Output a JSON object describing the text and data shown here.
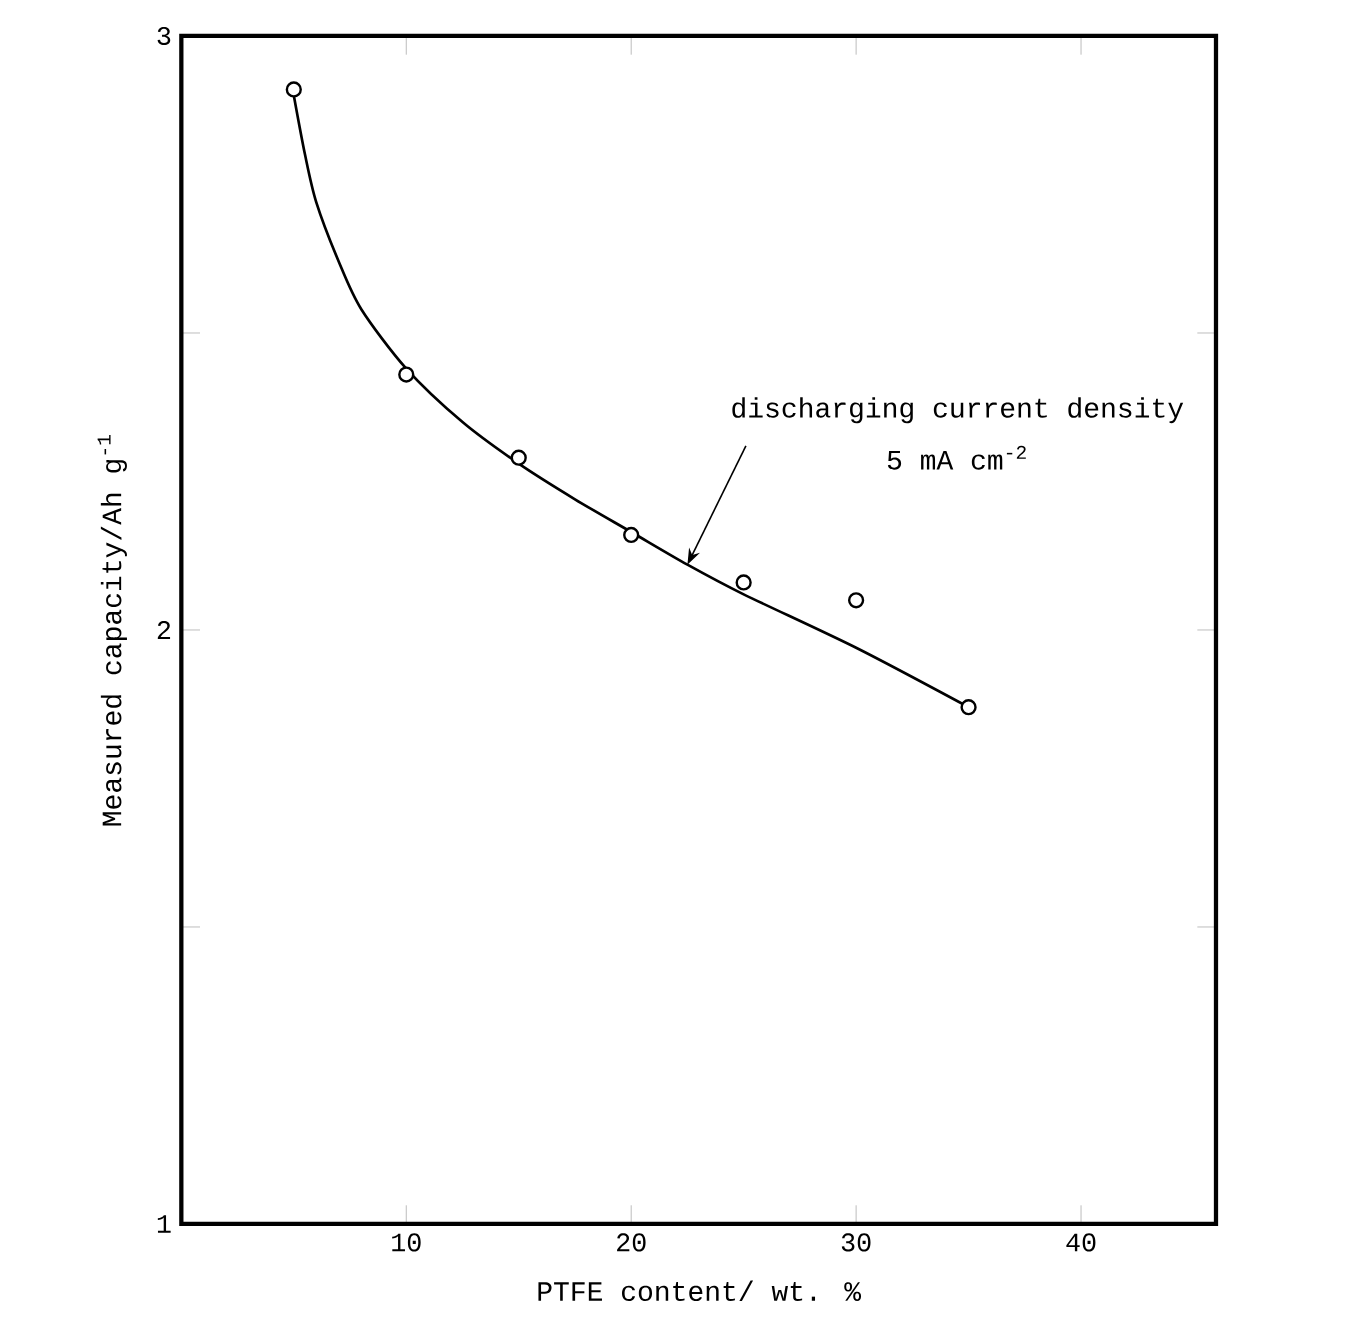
{
  "chart_data": {
    "type": "scatter",
    "xlabel": "PTFE content/ wt. %",
    "ylabel": "Measured capacity/Ah g$^{-1}$",
    "xlim": [
      0,
      46
    ],
    "ylim": [
      1,
      3
    ],
    "xticks": [
      10,
      20,
      30,
      40
    ],
    "yticks": [
      1,
      {
        "value": 1.5,
        "label": null
      },
      2,
      {
        "value": 2.5,
        "label": null
      },
      3
    ],
    "grid": false,
    "annotations": [
      {
        "text": "discharging current density",
        "x": 22.5,
        "y": 2.11
      },
      "5 mA cm$^{-2}$"
    ],
    "series": [
      {
        "type": "scatter",
        "color": "#000000",
        "marker": "circle",
        "x": [
          5,
          10,
          15,
          20,
          25,
          30,
          35
        ],
        "values": [
          2.91,
          2.43,
          2.29,
          2.16,
          2.08,
          2.05,
          1.87
        ]
      },
      {
        "type": "line",
        "color": "#000000",
        "marker": "none",
        "line_style": "solid",
        "x": [
          5,
          5.5,
          6,
          7,
          8,
          10,
          12.5,
          15,
          17.5,
          20,
          22.5,
          25,
          30,
          35
        ],
        "values": [
          2.9,
          2.8,
          2.72,
          2.62,
          2.54,
          2.44,
          2.35,
          2.28,
          2.22,
          2.165,
          2.11,
          2.06,
          1.97,
          1.87
        ]
      }
    ]
  }
}
